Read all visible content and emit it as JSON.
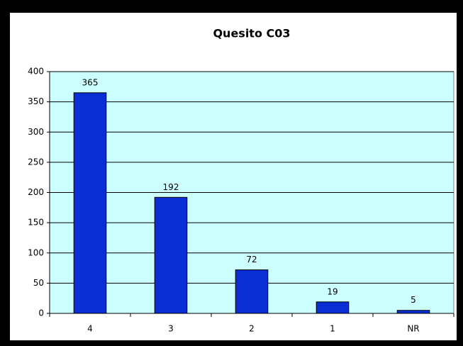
{
  "chart_data": {
    "type": "bar",
    "title": "Quesito C03",
    "categories": [
      "4",
      "3",
      "2",
      "1",
      "NR"
    ],
    "values": [
      365,
      192,
      72,
      19,
      5
    ],
    "color": "#0a2ed6",
    "plot_background": "#ccffff",
    "ylim": [
      0,
      400
    ],
    "yticks": [
      0,
      50,
      100,
      150,
      200,
      250,
      300,
      350,
      400
    ],
    "grid": true
  }
}
